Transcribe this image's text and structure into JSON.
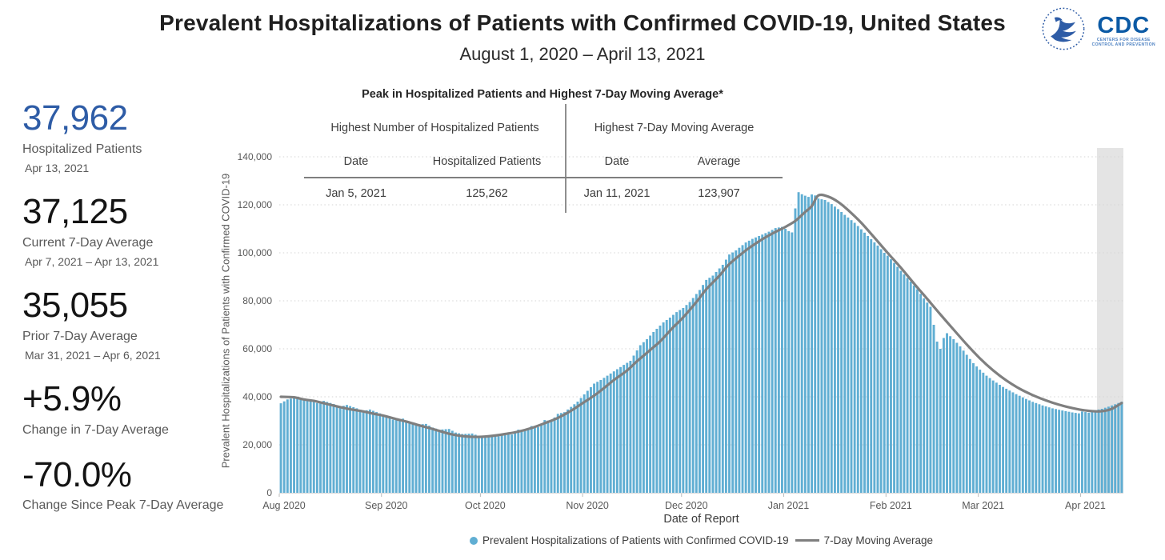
{
  "header": {
    "title": "Prevalent Hospitalizations of Patients with Confirmed COVID-19, United States",
    "subtitle": "August 1, 2020 – April 13, 2021",
    "logos": {
      "hhs_alt": "HHS eagle emblem",
      "cdc_acronym": "CDC",
      "cdc_caption_line1": "CENTERS FOR DISEASE",
      "cdc_caption_line2": "CONTROL AND PREVENTION"
    }
  },
  "stats": [
    {
      "value": "37,962",
      "label": "Hospitalized Patients",
      "sublabel": "Apr 13, 2021",
      "color": "#2e5ca6"
    },
    {
      "value": "37,125",
      "label": "Current 7-Day Average",
      "sublabel": "Apr 7, 2021 – Apr 13, 2021",
      "color": "#141414"
    },
    {
      "value": "35,055",
      "label": "Prior 7-Day Average",
      "sublabel": "Mar 31, 2021 – Apr 6, 2021",
      "color": "#141414"
    },
    {
      "value": "+5.9%",
      "label": "Change in 7-Day Average",
      "sublabel": "",
      "color": "#141414"
    },
    {
      "value": "-70.0%",
      "label": "Change Since Peak 7-Day Average",
      "sublabel": "",
      "color": "#141414"
    }
  ],
  "peak_table": {
    "title": "Peak in Hospitalized Patients and Highest 7-Day Moving Average*",
    "groups": [
      {
        "header": "Highest Number of Hospitalized Patients",
        "columns": [
          "Date",
          "Hospitalized Patients"
        ],
        "row": [
          "Jan 5, 2021",
          "125,262"
        ]
      },
      {
        "header": "Highest 7-Day Moving Average",
        "columns": [
          "Date",
          "Average"
        ],
        "row": [
          "Jan 11, 2021",
          "123,907"
        ]
      }
    ]
  },
  "chart_data": {
    "type": "bar+line",
    "xlabel": "Date of Report",
    "ylabel": "Prevalent Hospitalizations of Patients with Confirmed COVID-19",
    "start_date": "2020-08-01",
    "end_date": "2021-04-13",
    "days": 256,
    "ylim": [
      0,
      140000
    ],
    "yticks": [
      0,
      20000,
      40000,
      60000,
      80000,
      100000,
      120000,
      140000
    ],
    "grid": "dotted horizontal",
    "months": [
      {
        "label": "Aug 2020",
        "day": 0
      },
      {
        "label": "Sep 2020",
        "day": 31
      },
      {
        "label": "Oct 2020",
        "day": 61
      },
      {
        "label": "Nov 2020",
        "day": 92
      },
      {
        "label": "Dec 2020",
        "day": 122
      },
      {
        "label": "Jan 2021",
        "day": 153
      },
      {
        "label": "Feb 2021",
        "day": 184
      },
      {
        "label": "Mar 2021",
        "day": 212
      },
      {
        "label": "Apr 2021",
        "day": 243
      }
    ],
    "highlight_band": {
      "start_day": 248,
      "end_day": 256,
      "color": "#e4e4e4"
    },
    "annotations": {
      "highest_bar": {
        "date": "Jan 5, 2021",
        "value": 125262
      },
      "highest_avg": {
        "date": "Jan 11, 2021",
        "value": 123907
      },
      "last_value": {
        "date": "Apr 13, 2021",
        "value": 37962
      }
    },
    "legend_position": "bottom center",
    "series": [
      {
        "name": "Prevalent Hospitalizations of Patients with Confirmed COVID-19",
        "type": "bar",
        "color": "#60aed3",
        "note": "daily values; sampled keypoints [day_offset_from_Aug_1_2020, patients] read from chart, linearly interpolated for intermediate days",
        "keypoints": [
          [
            0,
            37300
          ],
          [
            2,
            38900
          ],
          [
            4,
            39600
          ],
          [
            6,
            39300
          ],
          [
            9,
            38600
          ],
          [
            11,
            37400
          ],
          [
            13,
            38300
          ],
          [
            16,
            37000
          ],
          [
            18,
            35900
          ],
          [
            20,
            36600
          ],
          [
            23,
            35200
          ],
          [
            25,
            34100
          ],
          [
            27,
            34700
          ],
          [
            30,
            33100
          ],
          [
            32,
            31900
          ],
          [
            34,
            30500
          ],
          [
            37,
            30900
          ],
          [
            39,
            29300
          ],
          [
            41,
            28400
          ],
          [
            44,
            28700
          ],
          [
            46,
            27200
          ],
          [
            48,
            26300
          ],
          [
            51,
            26600
          ],
          [
            53,
            25100
          ],
          [
            55,
            24500
          ],
          [
            58,
            24700
          ],
          [
            60,
            23700
          ],
          [
            62,
            23400
          ],
          [
            64,
            23900
          ],
          [
            66,
            23500
          ],
          [
            68,
            24600
          ],
          [
            70,
            24300
          ],
          [
            72,
            26300
          ],
          [
            74,
            25800
          ],
          [
            76,
            27800
          ],
          [
            78,
            27400
          ],
          [
            80,
            30300
          ],
          [
            82,
            29900
          ],
          [
            84,
            32900
          ],
          [
            86,
            33600
          ],
          [
            88,
            35800
          ],
          [
            90,
            38000
          ],
          [
            92,
            41000
          ],
          [
            95,
            45500
          ],
          [
            97,
            47000
          ],
          [
            100,
            49700
          ],
          [
            102,
            51500
          ],
          [
            104,
            53300
          ],
          [
            106,
            55000
          ],
          [
            109,
            61500
          ],
          [
            111,
            64000
          ],
          [
            113,
            67000
          ],
          [
            116,
            71000
          ],
          [
            118,
            73000
          ],
          [
            120,
            75300
          ],
          [
            122,
            77000
          ],
          [
            124,
            79500
          ],
          [
            127,
            84500
          ],
          [
            129,
            88700
          ],
          [
            131,
            90500
          ],
          [
            134,
            95000
          ],
          [
            136,
            99300
          ],
          [
            138,
            101000
          ],
          [
            141,
            104300
          ],
          [
            143,
            105800
          ],
          [
            145,
            107000
          ],
          [
            148,
            108800
          ],
          [
            150,
            110300
          ],
          [
            152,
            110800
          ],
          [
            153,
            110000
          ],
          [
            154,
            109000
          ],
          [
            155,
            108500
          ],
          [
            156,
            118500
          ],
          [
            157,
            125262
          ],
          [
            158,
            124400
          ],
          [
            159,
            123800
          ],
          [
            160,
            123300
          ],
          [
            161,
            124300
          ],
          [
            162,
            123900
          ],
          [
            163,
            122600
          ],
          [
            165,
            122000
          ],
          [
            167,
            120300
          ],
          [
            169,
            118200
          ],
          [
            171,
            115800
          ],
          [
            174,
            112500
          ],
          [
            176,
            109800
          ],
          [
            178,
            107000
          ],
          [
            181,
            103000
          ],
          [
            183,
            100000
          ],
          [
            184,
            98800
          ],
          [
            186,
            95800
          ],
          [
            188,
            92500
          ],
          [
            191,
            88000
          ],
          [
            193,
            84800
          ],
          [
            195,
            81000
          ],
          [
            197,
            77500
          ],
          [
            198,
            70000
          ],
          [
            199,
            63000
          ],
          [
            200,
            60000
          ],
          [
            201,
            64500
          ],
          [
            202,
            66500
          ],
          [
            204,
            64000
          ],
          [
            206,
            61000
          ],
          [
            208,
            57500
          ],
          [
            210,
            54000
          ],
          [
            212,
            51300
          ],
          [
            214,
            48800
          ],
          [
            216,
            46800
          ],
          [
            219,
            44100
          ],
          [
            221,
            42600
          ],
          [
            223,
            41100
          ],
          [
            226,
            39100
          ],
          [
            228,
            37900
          ],
          [
            231,
            36400
          ],
          [
            234,
            35200
          ],
          [
            237,
            34300
          ],
          [
            240,
            33500
          ],
          [
            242,
            33100
          ],
          [
            243,
            33900
          ],
          [
            245,
            33400
          ],
          [
            247,
            34400
          ],
          [
            249,
            35000
          ],
          [
            251,
            35900
          ],
          [
            253,
            36900
          ],
          [
            255,
            37962
          ]
        ]
      },
      {
        "name": "7-Day Moving Average",
        "type": "line",
        "color": "#7f7f7f",
        "note": "sampled keypoints [day_offset_from_Aug_1_2020, average] read from chart; smooth curve",
        "keypoints": [
          [
            0,
            40000
          ],
          [
            4,
            39800
          ],
          [
            7,
            38900
          ],
          [
            10,
            38300
          ],
          [
            14,
            37000
          ],
          [
            18,
            35700
          ],
          [
            21,
            34800
          ],
          [
            25,
            33900
          ],
          [
            28,
            33000
          ],
          [
            31,
            32200
          ],
          [
            35,
            30700
          ],
          [
            38,
            29700
          ],
          [
            42,
            28100
          ],
          [
            45,
            27000
          ],
          [
            48,
            25800
          ],
          [
            52,
            24300
          ],
          [
            56,
            23500
          ],
          [
            60,
            23300
          ],
          [
            64,
            23700
          ],
          [
            68,
            24500
          ],
          [
            72,
            25500
          ],
          [
            76,
            27000
          ],
          [
            80,
            29000
          ],
          [
            84,
            31200
          ],
          [
            88,
            34200
          ],
          [
            92,
            37800
          ],
          [
            96,
            41500
          ],
          [
            101,
            47000
          ],
          [
            105,
            51000
          ],
          [
            108,
            54800
          ],
          [
            112,
            59500
          ],
          [
            115,
            63100
          ],
          [
            119,
            69000
          ],
          [
            122,
            73100
          ],
          [
            126,
            79500
          ],
          [
            129,
            84800
          ],
          [
            133,
            90500
          ],
          [
            136,
            95300
          ],
          [
            141,
            101000
          ],
          [
            145,
            104800
          ],
          [
            149,
            108000
          ],
          [
            153,
            110800
          ],
          [
            156,
            113300
          ],
          [
            159,
            117000
          ],
          [
            161,
            119500
          ],
          [
            163,
            123907
          ],
          [
            166,
            123400
          ],
          [
            169,
            121200
          ],
          [
            172,
            117800
          ],
          [
            176,
            112500
          ],
          [
            180,
            106300
          ],
          [
            184,
            100000
          ],
          [
            188,
            93800
          ],
          [
            192,
            87200
          ],
          [
            196,
            80800
          ],
          [
            200,
            74300
          ],
          [
            204,
            68000
          ],
          [
            208,
            61800
          ],
          [
            212,
            56000
          ],
          [
            216,
            51000
          ],
          [
            220,
            46800
          ],
          [
            224,
            43400
          ],
          [
            228,
            40700
          ],
          [
            232,
            38500
          ],
          [
            236,
            36700
          ],
          [
            240,
            35300
          ],
          [
            244,
            34300
          ],
          [
            248,
            33900
          ],
          [
            250,
            34200
          ],
          [
            252,
            35000
          ],
          [
            255,
            37400
          ]
        ]
      }
    ]
  }
}
